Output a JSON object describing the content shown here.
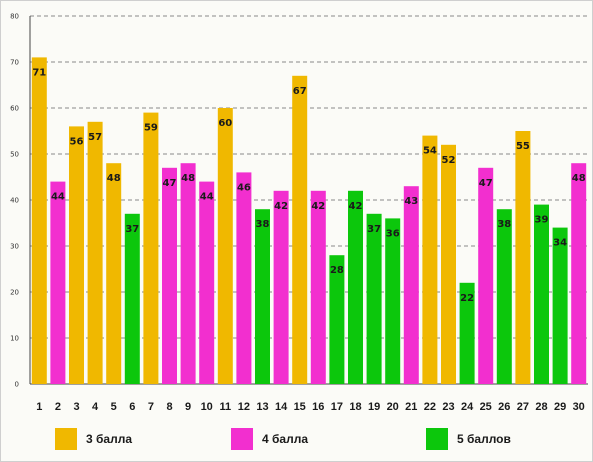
{
  "colors": {
    "3": "#f0b800",
    "4": "#f22fcf",
    "5": "#0cc70c"
  },
  "chart_data": {
    "type": "bar",
    "x": [
      1,
      2,
      3,
      4,
      5,
      6,
      7,
      8,
      9,
      10,
      11,
      12,
      13,
      14,
      15,
      16,
      17,
      18,
      19,
      20,
      21,
      22,
      23,
      24,
      25,
      26,
      27,
      28,
      29,
      30
    ],
    "values": [
      71,
      44,
      56,
      57,
      48,
      37,
      59,
      47,
      48,
      44,
      60,
      46,
      38,
      42,
      67,
      42,
      28,
      42,
      37,
      36,
      43,
      54,
      52,
      22,
      47,
      38,
      55,
      39,
      34,
      48
    ],
    "grade": [
      3,
      4,
      3,
      3,
      3,
      5,
      3,
      4,
      4,
      4,
      3,
      4,
      5,
      4,
      3,
      4,
      5,
      5,
      5,
      5,
      4,
      3,
      3,
      5,
      4,
      5,
      3,
      5,
      5,
      4
    ],
    "ylim": [
      0,
      80
    ],
    "yticks": [
      0,
      10,
      20,
      30,
      40,
      50,
      60,
      70,
      80
    ],
    "grid": true,
    "legend_position": "bottom",
    "legend": [
      {
        "grade": 3,
        "label": "3 балла"
      },
      {
        "grade": 4,
        "label": "4 балла"
      },
      {
        "grade": 5,
        "label": "5 баллов"
      }
    ]
  }
}
